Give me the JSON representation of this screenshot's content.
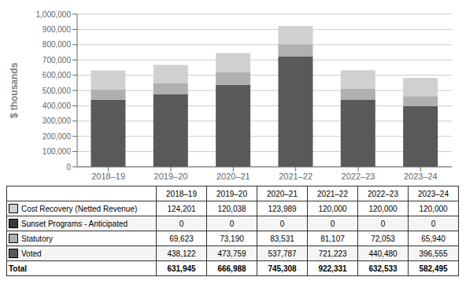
{
  "chart_data": {
    "type": "bar",
    "stacked": true,
    "grid": true,
    "ylabel": "$ thousands",
    "categories": [
      "2018–19",
      "2019–20",
      "2020–21",
      "2021–22",
      "2022–23",
      "2023–24"
    ],
    "series": [
      {
        "name": "Voted",
        "color": "#595959",
        "values": [
          438122,
          473759,
          537787,
          721223,
          440480,
          396555
        ],
        "value_labels": [
          "438,122",
          "473,759",
          "537,787",
          "721,223",
          "440,480",
          "396,555"
        ]
      },
      {
        "name": "Statutory",
        "color": "#b0b0b0",
        "values": [
          69623,
          73190,
          83531,
          81107,
          72053,
          65940
        ],
        "value_labels": [
          "69,623",
          "73,190",
          "83,531",
          "81,107",
          "72,053",
          "65,940"
        ]
      },
      {
        "name": "Sunset Programs - Anticipated",
        "color": "#3a3a3a",
        "values": [
          0,
          0,
          0,
          0,
          0,
          0
        ]
      },
      {
        "name": "Cost Recovery (Netted Revenue)",
        "color": "#d0d0d0",
        "values": [
          124201,
          120038,
          123989,
          120000,
          120000,
          120000
        ],
        "value_labels": [
          "124,201",
          "120,038",
          "123,989",
          "120,000",
          "120,000",
          "120,000"
        ]
      }
    ],
    "total": {
      "name": "Total",
      "values": [
        631945,
        666988,
        745308,
        922331,
        632533,
        582495
      ],
      "value_labels": [
        "631,945",
        "666,988",
        "745,308",
        "922,331",
        "632,533",
        "582,495"
      ]
    },
    "ylim": [
      0,
      1000000
    ],
    "yticks": [
      0,
      {
        "value": 100000,
        "label": "100,000"
      },
      {
        "value": 200000,
        "label": "200,000"
      },
      {
        "value": 300000,
        "label": "300,000"
      },
      {
        "value": 400000,
        "label": "400,000"
      },
      {
        "value": 500000,
        "label": "500,000"
      },
      {
        "value": 600000,
        "label": "600,000"
      },
      {
        "value": 700000,
        "label": "700,000"
      },
      {
        "value": 800000,
        "label": "800,000"
      },
      {
        "value": 900000,
        "label": "900,000"
      },
      {
        "value": 1000000,
        "label": "1,000,000"
      }
    ]
  }
}
